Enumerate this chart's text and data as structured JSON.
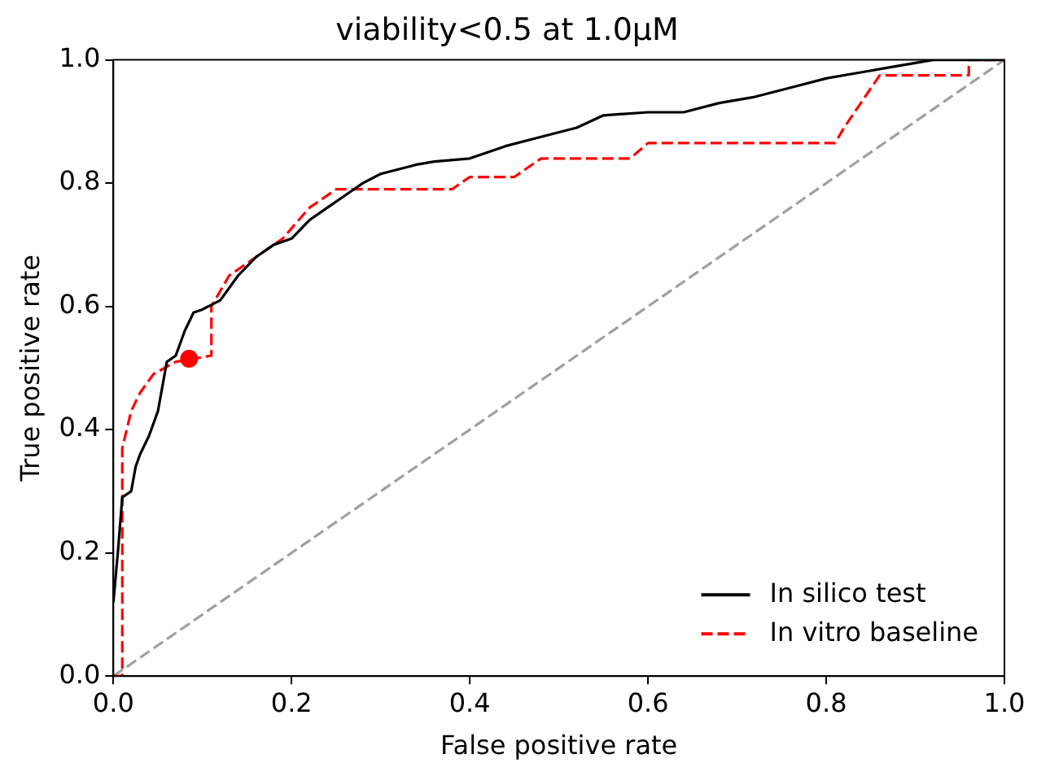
{
  "chart_data": {
    "type": "line",
    "title": "viability<0.5 at 1.0μM",
    "xlabel": "False positive rate",
    "ylabel": "True positive rate",
    "xlim": [
      0,
      1
    ],
    "ylim": [
      0,
      1
    ],
    "xticks": [
      {
        "value": 0,
        "label": "0.0"
      },
      0.2,
      0.4,
      0.6,
      0.8,
      {
        "value": 1,
        "label": "1.0"
      }
    ],
    "yticks": [
      {
        "value": 0,
        "label": "0.0"
      },
      0.2,
      0.4,
      0.6,
      0.8,
      {
        "value": 1,
        "label": "1.0"
      }
    ],
    "grid": false,
    "legend": "bottom right",
    "marker": "none",
    "series": [
      {
        "name": "In silico test",
        "color": "#000000",
        "line_style": "solid",
        "x": [
          0,
          0.005,
          0.01,
          0.02,
          0.025,
          0.03,
          0.04,
          0.05,
          0.055,
          0.06,
          0.07,
          0.08,
          0.09,
          0.1,
          0.12,
          0.14,
          0.16,
          0.18,
          0.2,
          0.22,
          0.24,
          0.26,
          0.28,
          0.3,
          0.34,
          0.36,
          0.4,
          0.44,
          0.48,
          0.52,
          0.55,
          0.6,
          0.64,
          0.68,
          0.72,
          0.76,
          0.8,
          0.84,
          0.88,
          0.92,
          1
        ],
        "values": [
          0.12,
          0.2,
          0.29,
          0.3,
          0.34,
          0.36,
          0.39,
          0.43,
          0.47,
          0.51,
          0.52,
          0.56,
          0.59,
          0.595,
          0.61,
          0.65,
          0.68,
          0.7,
          0.71,
          0.74,
          0.76,
          0.78,
          0.8,
          0.815,
          0.83,
          0.835,
          0.84,
          0.86,
          0.875,
          0.89,
          0.91,
          0.915,
          0.915,
          0.93,
          0.94,
          0.955,
          0.97,
          0.98,
          0.99,
          1,
          1
        ]
      },
      {
        "name": "In vitro baseline",
        "color": "#ff0000",
        "line_style": "dashed",
        "x": [
          0,
          0.01,
          0.01,
          0.02,
          0.03,
          0.045,
          0.07,
          0.11,
          0.11,
          0.13,
          0.16,
          0.19,
          0.22,
          0.25,
          0.38,
          0.4,
          0.45,
          0.48,
          0.58,
          0.6,
          0.81,
          0.82,
          0.86,
          0.96,
          0.96,
          1
        ],
        "values": [
          0,
          0,
          0.37,
          0.43,
          0.46,
          0.49,
          0.51,
          0.52,
          0.6,
          0.65,
          0.68,
          0.71,
          0.76,
          0.79,
          0.79,
          0.81,
          0.81,
          0.84,
          0.84,
          0.865,
          0.865,
          0.89,
          0.975,
          0.975,
          1,
          1
        ]
      },
      {
        "type": "scatter",
        "color": "#ff0000",
        "marker": "circle",
        "x": [
          0.085
        ],
        "values": [
          0.515
        ]
      },
      {
        "color": "#a0a0a0",
        "line_style": "dashed",
        "x": [
          0,
          1
        ],
        "values": [
          0,
          1
        ]
      }
    ]
  }
}
